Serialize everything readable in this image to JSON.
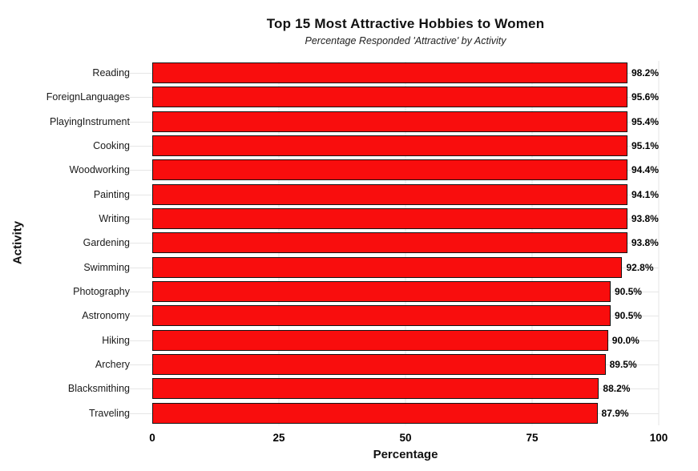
{
  "chart_data": {
    "type": "bar",
    "orientation": "horizontal",
    "title": "Top 15 Most Attractive Hobbies to Women",
    "subtitle": "Percentage Responded 'Attractive' by Activity",
    "xlabel": "Percentage",
    "ylabel": "Activity",
    "xlim": [
      0,
      100
    ],
    "xticks": [
      "0",
      "25",
      "50",
      "75",
      "100"
    ],
    "grid": true,
    "legend": "none",
    "bar_color": "#f90d0d",
    "bar_edge_color": "#141414",
    "gridline_color": "#e5e5e5",
    "categories": [
      "Reading",
      "ForeignLanguages",
      "PlayingInstrument",
      "Cooking",
      "Woodworking",
      "Painting",
      "Writing",
      "Gardening",
      "Swimming",
      "Photography",
      "Astronomy",
      "Hiking",
      "Archery",
      "Blacksmithing",
      "Traveling"
    ],
    "values": [
      98.2,
      95.6,
      95.4,
      95.1,
      94.4,
      94.1,
      93.8,
      93.8,
      92.8,
      90.5,
      90.5,
      90.0,
      89.5,
      88.2,
      87.9
    ],
    "value_labels": [
      "98.2%",
      "95.6%",
      "95.4%",
      "95.1%",
      "94.4%",
      "94.1%",
      "93.8%",
      "93.8%",
      "92.8%",
      "90.5%",
      "90.5%",
      "90.0%",
      "89.5%",
      "88.2%",
      "87.9%"
    ]
  }
}
